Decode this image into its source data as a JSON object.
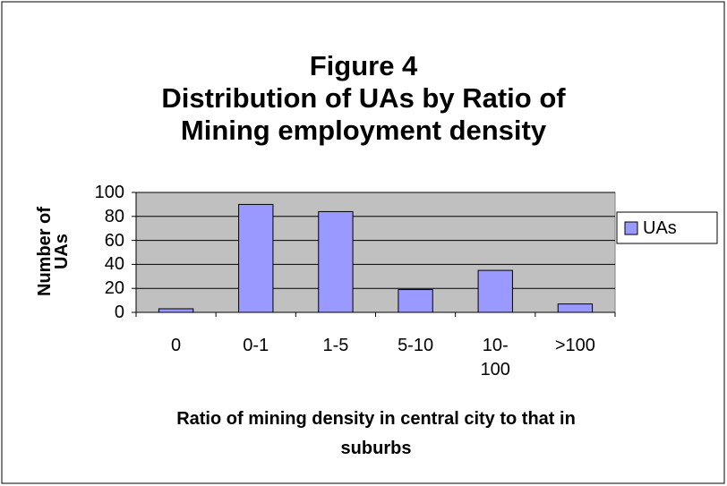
{
  "chart_data": {
    "type": "bar",
    "title": "Figure 4\nDistribution of UAs by Ratio of\nMining employment density",
    "x_label": "Ratio of mining density in central city to that in suburbs",
    "y_label": "Number of UAs",
    "categories": [
      "0",
      "0-1",
      "1-5",
      "5-10",
      "10-100",
      ">100"
    ],
    "series": [
      {
        "name": "UAs",
        "color": "#9999ff",
        "values": [
          3,
          90,
          84,
          19,
          35,
          7
        ]
      }
    ],
    "ylim": [
      0,
      100
    ],
    "yticks": [
      0,
      20,
      40,
      60,
      80,
      100
    ],
    "grid": true,
    "legend": "right"
  }
}
